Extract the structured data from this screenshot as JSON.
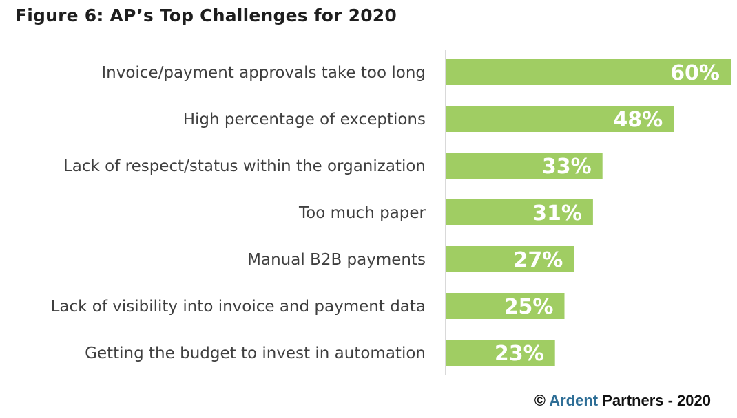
{
  "title": "Figure 6: AP’s Top Challenges for 2020",
  "footer": {
    "copyright": "©",
    "brand": "Ardent",
    "rest": "Partners - 2020"
  },
  "colors": {
    "bar": "#a0cd63",
    "axis": "#d9d9d9",
    "brand": "#2e6e96"
  },
  "chart_data": {
    "type": "bar",
    "orientation": "horizontal",
    "title": "Figure 6: AP’s Top Challenges for 2020",
    "xlabel": "",
    "ylabel": "",
    "xlim": [
      0,
      60
    ],
    "grid": false,
    "legend": "none",
    "categories": [
      "Invoice/payment approvals take too long",
      "High percentage of exceptions",
      "Lack of respect/status within the organization",
      "Too much paper",
      "Manual B2B payments",
      "Lack of visibility into invoice and payment data",
      "Getting the budget to invest in automation"
    ],
    "values": [
      60,
      48,
      33,
      31,
      27,
      25,
      23
    ],
    "data_labels": [
      "60%",
      "48%",
      "33%",
      "31%",
      "27%",
      "25%",
      "23%"
    ]
  }
}
